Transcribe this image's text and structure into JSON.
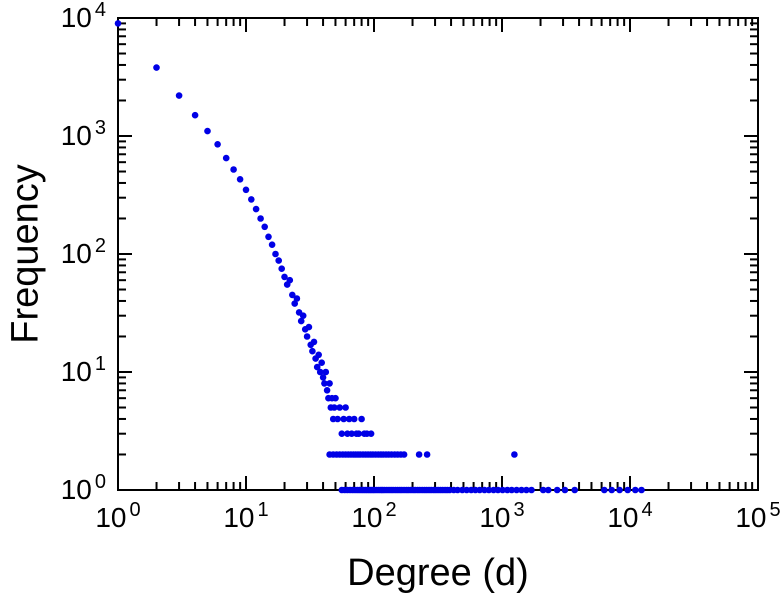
{
  "chart_data": {
    "type": "scatter",
    "title": "",
    "xlabel": "Degree (d)",
    "ylabel": "Frequency",
    "x_scale": "log",
    "y_scale": "log",
    "xlim": [
      1,
      100000
    ],
    "ylim": [
      1,
      10000
    ],
    "grid": false,
    "legend": false,
    "marker_color": "#0000e6",
    "marker_size": 3.3,
    "axis_color": "#000000",
    "x_ticks": [
      {
        "base": "10",
        "exp": "0",
        "value": 1
      },
      {
        "base": "10",
        "exp": "1",
        "value": 10
      },
      {
        "base": "10",
        "exp": "2",
        "value": 100
      },
      {
        "base": "10",
        "exp": "3",
        "value": 1000
      },
      {
        "base": "10",
        "exp": "4",
        "value": 10000
      },
      {
        "base": "10",
        "exp": "5",
        "value": 100000
      }
    ],
    "y_ticks": [
      {
        "base": "10",
        "exp": "0",
        "value": 1
      },
      {
        "base": "10",
        "exp": "1",
        "value": 10
      },
      {
        "base": "10",
        "exp": "2",
        "value": 100
      },
      {
        "base": "10",
        "exp": "3",
        "value": 1000
      },
      {
        "base": "10",
        "exp": "4",
        "value": 10000
      }
    ],
    "points": [
      [
        1,
        9000
      ],
      [
        2,
        3800
      ],
      [
        3,
        2200
      ],
      [
        4,
        1500
      ],
      [
        5,
        1100
      ],
      [
        6,
        850
      ],
      [
        7,
        650
      ],
      [
        8,
        520
      ],
      [
        9,
        430
      ],
      [
        10,
        350
      ],
      [
        11,
        290
      ],
      [
        12,
        240
      ],
      [
        13,
        200
      ],
      [
        14,
        170
      ],
      [
        15,
        140
      ],
      [
        16,
        120
      ],
      [
        17,
        100
      ],
      [
        18,
        88
      ],
      [
        19,
        75
      ],
      [
        20,
        64
      ],
      [
        21,
        55
      ],
      [
        22,
        60
      ],
      [
        23,
        45
      ],
      [
        24,
        38
      ],
      [
        25,
        42
      ],
      [
        26,
        32
      ],
      [
        27,
        27
      ],
      [
        28,
        30
      ],
      [
        29,
        23
      ],
      [
        30,
        20
      ],
      [
        31,
        24
      ],
      [
        32,
        17
      ],
      [
        33,
        15
      ],
      [
        34,
        18
      ],
      [
        35,
        13
      ],
      [
        36,
        11
      ],
      [
        37,
        14
      ],
      [
        38,
        10
      ],
      [
        39,
        12
      ],
      [
        40,
        9
      ],
      [
        41,
        8
      ],
      [
        42,
        10
      ],
      [
        43,
        7
      ],
      [
        44,
        6
      ],
      [
        45,
        8
      ],
      [
        46,
        5
      ],
      [
        47,
        6
      ],
      [
        48,
        4
      ],
      [
        49,
        5
      ],
      [
        50,
        6
      ],
      [
        52,
        4
      ],
      [
        54,
        5
      ],
      [
        56,
        3
      ],
      [
        58,
        4
      ],
      [
        60,
        5
      ],
      [
        62,
        3
      ],
      [
        64,
        4
      ],
      [
        67,
        3
      ],
      [
        70,
        4
      ],
      [
        73,
        3
      ],
      [
        76,
        3
      ],
      [
        80,
        4
      ],
      [
        84,
        3
      ],
      [
        88,
        3
      ],
      [
        95,
        3
      ],
      [
        45,
        2
      ],
      [
        48,
        2
      ],
      [
        51,
        2
      ],
      [
        54,
        2
      ],
      [
        57,
        2
      ],
      [
        60,
        2
      ],
      [
        63,
        2
      ],
      [
        66,
        2
      ],
      [
        69,
        2
      ],
      [
        72,
        2
      ],
      [
        75,
        2
      ],
      [
        78,
        2
      ],
      [
        82,
        2
      ],
      [
        86,
        2
      ],
      [
        90,
        2
      ],
      [
        94,
        2
      ],
      [
        98,
        2
      ],
      [
        103,
        2
      ],
      [
        108,
        2
      ],
      [
        113,
        2
      ],
      [
        118,
        2
      ],
      [
        124,
        2
      ],
      [
        130,
        2
      ],
      [
        137,
        2
      ],
      [
        145,
        2
      ],
      [
        153,
        2
      ],
      [
        162,
        2
      ],
      [
        172,
        2
      ],
      [
        225,
        2
      ],
      [
        260,
        2
      ],
      [
        1250,
        2
      ],
      [
        56,
        1
      ],
      [
        59,
        1
      ],
      [
        62,
        1
      ],
      [
        65,
        1
      ],
      [
        68,
        1
      ],
      [
        71,
        1
      ],
      [
        74,
        1
      ],
      [
        77,
        1
      ],
      [
        80,
        1
      ],
      [
        83,
        1
      ],
      [
        86,
        1
      ],
      [
        89,
        1
      ],
      [
        92,
        1
      ],
      [
        95,
        1
      ],
      [
        98,
        1
      ],
      [
        101,
        1
      ],
      [
        105,
        1
      ],
      [
        109,
        1
      ],
      [
        113,
        1
      ],
      [
        117,
        1
      ],
      [
        121,
        1
      ],
      [
        126,
        1
      ],
      [
        131,
        1
      ],
      [
        136,
        1
      ],
      [
        141,
        1
      ],
      [
        147,
        1
      ],
      [
        153,
        1
      ],
      [
        159,
        1
      ],
      [
        165,
        1
      ],
      [
        172,
        1
      ],
      [
        179,
        1
      ],
      [
        186,
        1
      ],
      [
        194,
        1
      ],
      [
        202,
        1
      ],
      [
        210,
        1
      ],
      [
        219,
        1
      ],
      [
        228,
        1
      ],
      [
        238,
        1
      ],
      [
        248,
        1
      ],
      [
        258,
        1
      ],
      [
        269,
        1
      ],
      [
        280,
        1
      ],
      [
        292,
        1
      ],
      [
        304,
        1
      ],
      [
        317,
        1
      ],
      [
        330,
        1
      ],
      [
        344,
        1
      ],
      [
        359,
        1
      ],
      [
        374,
        1
      ],
      [
        390,
        1
      ],
      [
        420,
        1
      ],
      [
        450,
        1
      ],
      [
        490,
        1
      ],
      [
        530,
        1
      ],
      [
        575,
        1
      ],
      [
        620,
        1
      ],
      [
        670,
        1
      ],
      [
        730,
        1
      ],
      [
        790,
        1
      ],
      [
        860,
        1
      ],
      [
        930,
        1
      ],
      [
        1010,
        1
      ],
      [
        1100,
        1
      ],
      [
        1190,
        1
      ],
      [
        1300,
        1
      ],
      [
        1420,
        1
      ],
      [
        1550,
        1
      ],
      [
        1700,
        1
      ],
      [
        2100,
        1
      ],
      [
        2300,
        1
      ],
      [
        2700,
        1
      ],
      [
        3100,
        1
      ],
      [
        3700,
        1
      ],
      [
        6300,
        1
      ],
      [
        7200,
        1
      ],
      [
        8300,
        1
      ],
      [
        9600,
        1
      ],
      [
        11000,
        1
      ],
      [
        12300,
        1
      ]
    ]
  }
}
